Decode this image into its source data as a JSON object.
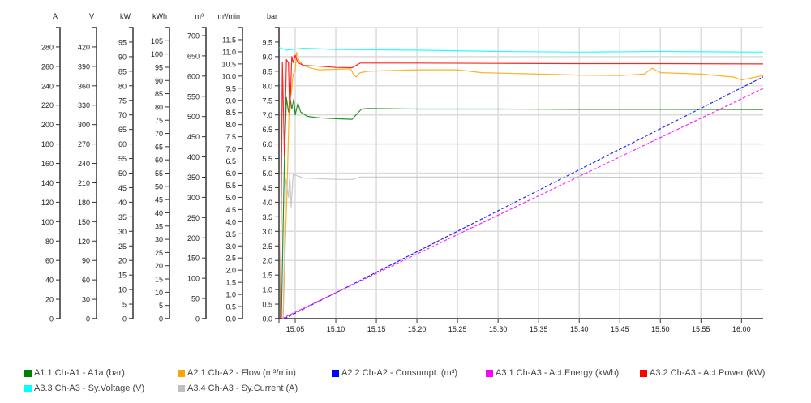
{
  "chart_data": {
    "type": "line",
    "x_axis": {
      "ticks": [
        "15:05",
        "15:10",
        "15:15",
        "15:20",
        "15:25",
        "15:30",
        "15:35",
        "15:40",
        "15:45",
        "15:50",
        "15:55",
        "16:00"
      ],
      "range": [
        "15:03:00",
        "16:02:40"
      ]
    },
    "grid": true,
    "legend_placement": "bottom",
    "y_axes": [
      {
        "id": "A",
        "unit": "A",
        "range": [
          0,
          300
        ],
        "step": 20,
        "ticks_to": 280
      },
      {
        "id": "V",
        "unit": "V",
        "range": [
          0,
          450
        ],
        "step": 30,
        "ticks_to": 420
      },
      {
        "id": "kW",
        "unit": "kW",
        "range": [
          0,
          100
        ],
        "step": 5,
        "ticks_to": 95
      },
      {
        "id": "kWh",
        "unit": "kWh",
        "range": [
          0,
          110
        ],
        "step": 5,
        "ticks_to": 105
      },
      {
        "id": "m3",
        "unit": "m³",
        "range": [
          0,
          720
        ],
        "step": 50,
        "ticks_to": 700
      },
      {
        "id": "m3min",
        "unit": "m³/min",
        "range": [
          0,
          12
        ],
        "step": 0.5,
        "ticks_to": 11.5,
        "decimals": 1
      },
      {
        "id": "bar",
        "unit": "bar",
        "range": [
          0,
          10
        ],
        "step": 0.5,
        "ticks_to": 9.5,
        "decimals": 1
      }
    ],
    "series": [
      {
        "name": "A1.1 Ch-A1 - A1a (bar)",
        "axis": "bar",
        "color": "#008000",
        "dashed": false,
        "points": [
          [
            "15:03:18",
            0
          ],
          [
            "15:03:40",
            5.5
          ],
          [
            "15:03:55",
            7.6
          ],
          [
            "15:04:10",
            7.1
          ],
          [
            "15:04:25",
            7.5
          ],
          [
            "15:04:35",
            7.2
          ],
          [
            "15:04:50",
            7.55
          ],
          [
            "15:05:00",
            7.0
          ],
          [
            "15:05:20",
            7.4
          ],
          [
            "15:05:40",
            7.1
          ],
          [
            "15:06:30",
            6.95
          ],
          [
            "15:08:00",
            6.9
          ],
          [
            "15:10:00",
            6.87
          ],
          [
            "15:12:00",
            6.85
          ],
          [
            "15:12:40",
            7.05
          ],
          [
            "15:13:10",
            7.2
          ],
          [
            "15:14:00",
            7.22
          ],
          [
            "15:20:00",
            7.2
          ],
          [
            "15:30:00",
            7.2
          ],
          [
            "15:40:00",
            7.19
          ],
          [
            "15:50:00",
            7.19
          ],
          [
            "16:02:40",
            7.18
          ]
        ]
      },
      {
        "name": "A2.1 Ch-A2 - Flow (m³/min)",
        "axis": "m3min",
        "color": "#ffa500",
        "dashed": false,
        "points": [
          [
            "15:03:30",
            0
          ],
          [
            "15:04:00",
            5.4
          ],
          [
            "15:04:20",
            9.72
          ],
          [
            "15:04:30",
            9.24
          ],
          [
            "15:04:45",
            10.08
          ],
          [
            "15:05:00",
            10.2
          ],
          [
            "15:05:10",
            10.98
          ],
          [
            "15:05:30",
            10.62
          ],
          [
            "15:06:00",
            10.44
          ],
          [
            "15:07:00",
            10.32
          ],
          [
            "15:08:00",
            10.26
          ],
          [
            "15:10:00",
            10.28
          ],
          [
            "15:11:50",
            10.3
          ],
          [
            "15:12:10",
            10.08
          ],
          [
            "15:12:30",
            9.96
          ],
          [
            "15:13:00",
            10.14
          ],
          [
            "15:14:00",
            10.2
          ],
          [
            "15:20:00",
            10.26
          ],
          [
            "15:25:00",
            10.26
          ],
          [
            "15:28:00",
            10.14
          ],
          [
            "15:35:00",
            10.08
          ],
          [
            "15:40:00",
            10.04
          ],
          [
            "15:45:00",
            10.02
          ],
          [
            "15:48:00",
            10.08
          ],
          [
            "15:49:00",
            10.32
          ],
          [
            "15:50:00",
            10.14
          ],
          [
            "15:55:00",
            10.08
          ],
          [
            "15:59:00",
            9.96
          ],
          [
            "16:00:00",
            9.84
          ],
          [
            "16:02:40",
            10.02
          ]
        ]
      },
      {
        "name": "A2.2 Ch-A2 - Consumpt. (m³)",
        "axis": "m3",
        "color": "#0000ff",
        "dashed": true,
        "points": [
          [
            "15:03:40",
            0
          ],
          [
            "16:02:40",
            598
          ]
        ]
      },
      {
        "name": "A3.1 Ch-A3 - Act.Energy (kWh)",
        "axis": "kWh",
        "color": "#ff00ff",
        "dashed": true,
        "points": [
          [
            "15:03:20",
            0
          ],
          [
            "16:02:40",
            87
          ]
        ]
      },
      {
        "name": "A3.2 Ch-A3 - Act.Power (kW)",
        "axis": "kW",
        "color": "#ff0000",
        "dashed": false,
        "points": [
          [
            "15:03:10",
            0
          ],
          [
            "15:03:25",
            88
          ],
          [
            "15:03:40",
            56
          ],
          [
            "15:03:55",
            89
          ],
          [
            "15:04:10",
            88
          ],
          [
            "15:04:20",
            70
          ],
          [
            "15:04:35",
            90
          ],
          [
            "15:04:45",
            88
          ],
          [
            "15:05:00",
            90.5
          ],
          [
            "15:05:20",
            88
          ],
          [
            "15:06:00",
            87
          ],
          [
            "15:08:00",
            86.7
          ],
          [
            "15:10:00",
            86.3
          ],
          [
            "15:12:00",
            86.2
          ],
          [
            "15:13:00",
            87.8
          ],
          [
            "15:20:00",
            87.8
          ],
          [
            "15:30:00",
            87.7
          ],
          [
            "15:40:00",
            87.6
          ],
          [
            "15:50:00",
            87.6
          ],
          [
            "16:02:40",
            87.5
          ]
        ]
      },
      {
        "name": "A3.3 Ch-A3 - Sy.Voltage (V)",
        "axis": "V",
        "color": "#00ffff",
        "dashed": false,
        "points": [
          [
            "15:03:00",
            419
          ],
          [
            "15:04:00",
            415
          ],
          [
            "15:06:00",
            418
          ],
          [
            "15:10:00",
            416
          ],
          [
            "15:20:00",
            415
          ],
          [
            "15:30:00",
            413
          ],
          [
            "15:40:00",
            412
          ],
          [
            "15:50:00",
            413
          ],
          [
            "16:02:40",
            412
          ]
        ]
      },
      {
        "name": "A3.4 Ch-A3 - Sy.Current (A)",
        "axis": "A",
        "color": "#c0c0c0",
        "dashed": false,
        "points": [
          [
            "15:03:30",
            0
          ],
          [
            "15:03:50",
            145
          ],
          [
            "15:04:10",
            125
          ],
          [
            "15:04:20",
            148
          ],
          [
            "15:04:30",
            115
          ],
          [
            "15:04:45",
            149
          ],
          [
            "15:05:00",
            148
          ],
          [
            "15:06:00",
            145
          ],
          [
            "15:10:00",
            143.5
          ],
          [
            "15:12:00",
            143.5
          ],
          [
            "15:13:00",
            146
          ],
          [
            "15:20:00",
            146
          ],
          [
            "15:40:00",
            146
          ],
          [
            "16:02:40",
            145
          ]
        ]
      }
    ]
  }
}
